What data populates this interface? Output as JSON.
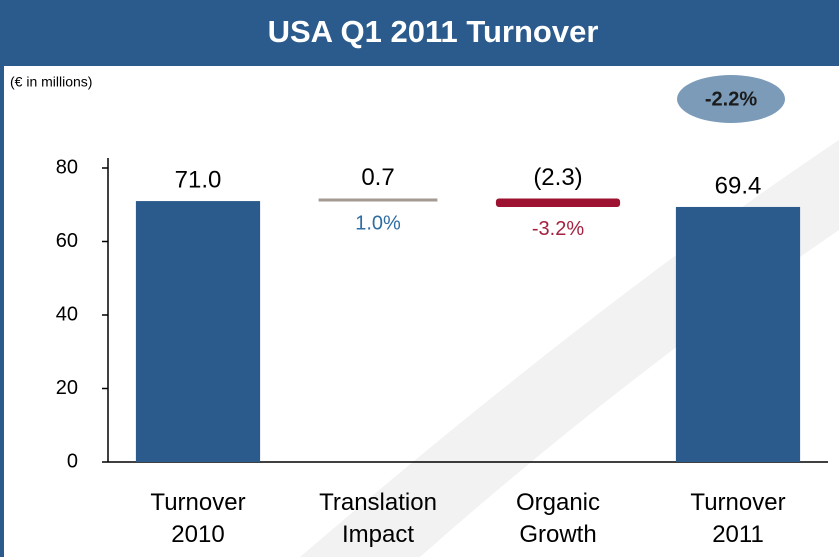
{
  "chart_data": {
    "type": "waterfall",
    "title": "USA Q1 2011 Turnover",
    "subtitle": "(€ in millions)",
    "categories": [
      [
        "Turnover",
        "2010"
      ],
      [
        "Translation",
        "Impact"
      ],
      [
        "Organic",
        "Growth"
      ],
      [
        "Turnover",
        "2011"
      ]
    ],
    "values": [
      71.0,
      0.7,
      -2.3,
      69.4
    ],
    "value_labels": [
      "71.0",
      "0.7",
      "(2.3)",
      "69.4"
    ],
    "measures": [
      "absolute",
      "relative",
      "relative",
      "absolute"
    ],
    "colors": [
      "#2b5b8c",
      "#a39a92",
      "#9c1230",
      "#2b5b8c"
    ],
    "percent_labels": [
      null,
      "1.0%",
      "-3.2%",
      null
    ],
    "percent_colors": [
      null,
      "#2f6da3",
      "#a3223f",
      null
    ],
    "total_change": "-2.2%",
    "ylim": [
      0,
      80
    ],
    "yticks": [
      0,
      20,
      40,
      60,
      80
    ]
  }
}
